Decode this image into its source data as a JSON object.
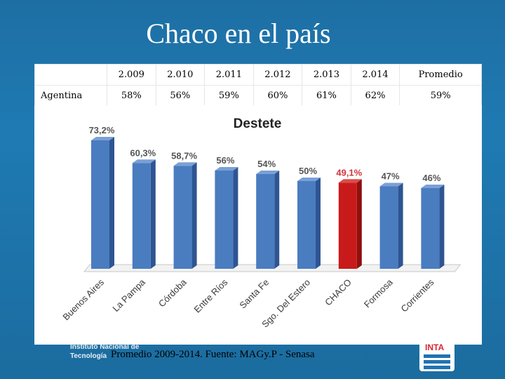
{
  "slide": {
    "title": "Chaco en el país",
    "footer_note": "Promedio 2009-2014. Fuente: MAGy.P - Senasa",
    "footer_logo_left": [
      "Instituto Nacional de",
      "Tecnología"
    ],
    "footer_logo_right": "INTA"
  },
  "table": {
    "headers": [
      "",
      "2.009",
      "2.010",
      "2.011",
      "2.012",
      "2.013",
      "2.014",
      "Promedio"
    ],
    "rows": [
      {
        "label": "Agentina",
        "values": [
          "58%",
          "56%",
          "59%",
          "60%",
          "61%",
          "62%",
          "59%"
        ]
      }
    ]
  },
  "colors": {
    "bar": "#4a7cc0",
    "highlight": "#c81a1a",
    "highlight_label": "#d2343b"
  },
  "chart_data": {
    "type": "bar",
    "title": "Destete",
    "categories": [
      "Buenos Aires",
      "La Pampa",
      "Córdoba",
      "Entre Ríos",
      "Santa Fe",
      "Sgo. Del Estero",
      "CHACO",
      "Formosa",
      "Corrientes"
    ],
    "values": [
      73.2,
      60.3,
      58.7,
      56,
      54,
      50,
      49.1,
      47,
      46
    ],
    "labels": [
      "73,2%",
      "60,3%",
      "58,7%",
      "56%",
      "54%",
      "50%",
      "49,1%",
      "47%",
      "46%"
    ],
    "highlight": "CHACO",
    "ylim": [
      0,
      80
    ],
    "grid": false,
    "legend": "none"
  }
}
